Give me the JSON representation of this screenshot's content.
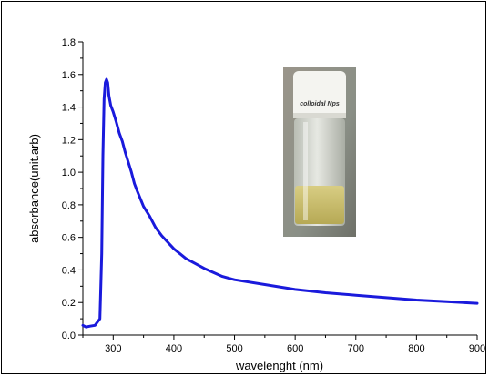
{
  "chart_data": {
    "type": "line",
    "xlabel": "wavelenght (nm)",
    "ylabel": "absorbance(unit.arb)",
    "xlim": [
      250,
      900
    ],
    "ylim": [
      0.0,
      1.8
    ],
    "x_ticks": [
      300,
      400,
      500,
      600,
      700,
      800,
      900
    ],
    "y_ticks": [
      0.0,
      0.2,
      0.4,
      0.6,
      0.8,
      1.0,
      1.2,
      1.4,
      1.6,
      1.8
    ],
    "x_tick_labels": [
      "300",
      "400",
      "500",
      "600",
      "700",
      "800",
      "900"
    ],
    "y_tick_labels": [
      "0.0",
      "0.2",
      "0.4",
      "0.6",
      "0.8",
      "1.0",
      "1.2",
      "1.4",
      "1.6",
      "1.8"
    ],
    "grid": false,
    "series": [
      {
        "color": "#1a1adc",
        "x": [
          250,
          255,
          262,
          270,
          278,
          281,
          283,
          285,
          287,
          289,
          291,
          293,
          296,
          300,
          305,
          310,
          315,
          320,
          325,
          330,
          335,
          340,
          350,
          360,
          370,
          380,
          400,
          420,
          450,
          480,
          500,
          550,
          600,
          650,
          700,
          750,
          800,
          850,
          900
        ],
        "y": [
          0.06,
          0.05,
          0.055,
          0.06,
          0.1,
          0.5,
          1.1,
          1.45,
          1.55,
          1.57,
          1.55,
          1.47,
          1.41,
          1.37,
          1.31,
          1.24,
          1.19,
          1.12,
          1.06,
          1.0,
          0.93,
          0.88,
          0.79,
          0.73,
          0.66,
          0.61,
          0.53,
          0.47,
          0.41,
          0.36,
          0.34,
          0.31,
          0.28,
          0.26,
          0.245,
          0.23,
          0.215,
          0.205,
          0.195
        ]
      }
    ],
    "inset_image": {
      "label": "colloidal Nps",
      "liquid_color": "#c9bd6a",
      "cap_color": "#f4f4f0"
    }
  }
}
